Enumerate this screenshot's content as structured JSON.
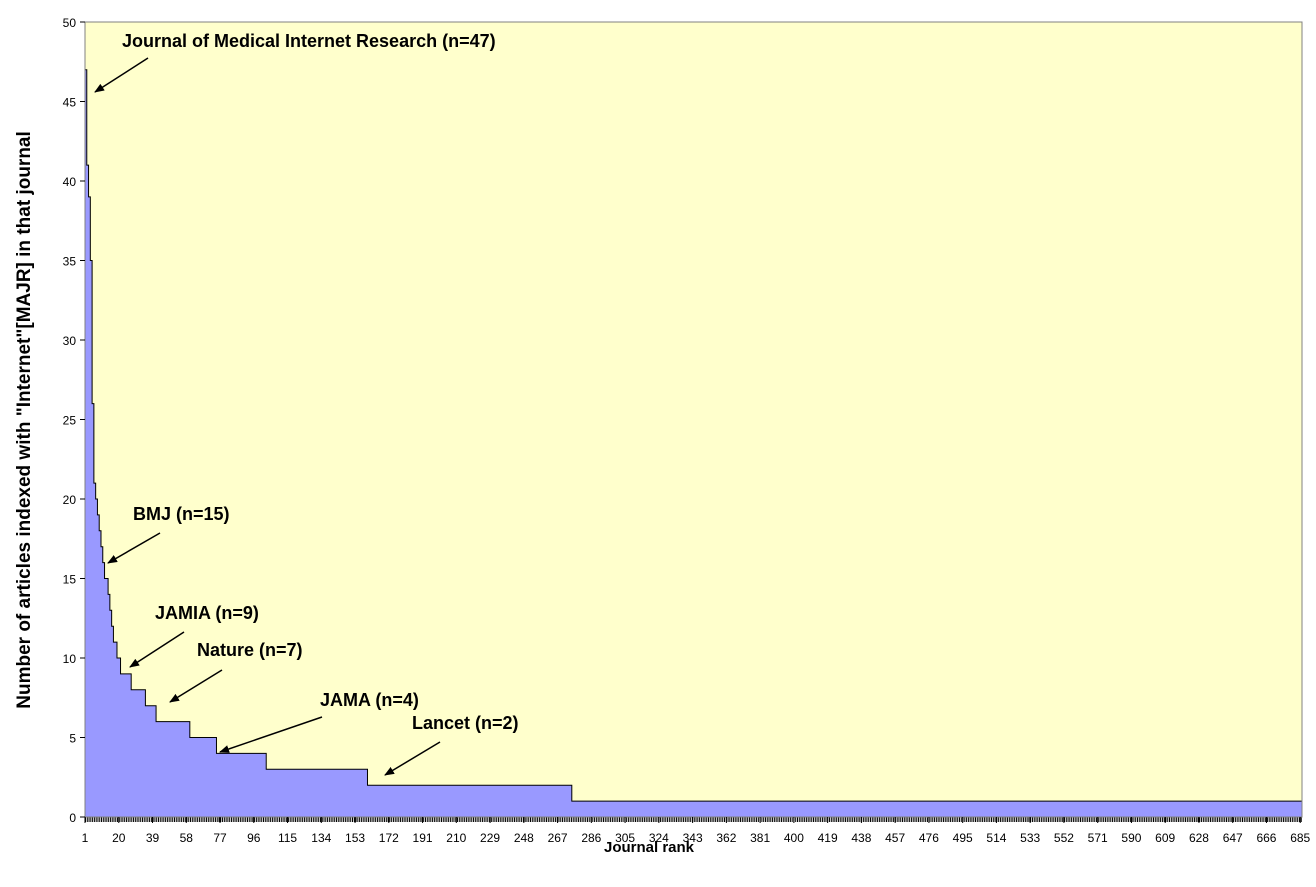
{
  "chart_data": {
    "type": "step-area",
    "y_label": "Number of articles indexed with \"Internet\"[MAJR] in that journal",
    "x_label": "Journal rank",
    "x": [
      1,
      2,
      3,
      4,
      5,
      6,
      7,
      8,
      9,
      10,
      11,
      12,
      14,
      15,
      16,
      17,
      19,
      21,
      27,
      35,
      41,
      60,
      75,
      103,
      160,
      275
    ],
    "values": [
      47,
      41,
      39,
      35,
      26,
      21,
      20,
      19,
      18,
      17,
      16,
      15,
      14,
      13,
      12,
      11,
      10,
      9,
      8,
      7,
      6,
      5,
      4,
      3,
      2,
      1
    ],
    "color": "#9999ff",
    "background": "#ffffcc",
    "xlim": [
      1,
      686
    ],
    "ylim": [
      0,
      50
    ],
    "xticks": [
      1,
      20,
      39,
      58,
      77,
      96,
      115,
      134,
      153,
      172,
      191,
      210,
      229,
      248,
      267,
      286,
      305,
      324,
      343,
      362,
      381,
      400,
      419,
      438,
      457,
      476,
      495,
      514,
      533,
      552,
      571,
      590,
      609,
      628,
      647,
      666,
      685
    ],
    "yticks": [
      0,
      5,
      10,
      15,
      20,
      25,
      30,
      35,
      40,
      45,
      50
    ],
    "annotations": [
      "Journal of Medical Internet Research (n=47)",
      "BMJ (n=15)",
      "JAMIA (n=9)",
      "Nature (n=7)",
      "JAMA (n=4)",
      "Lancet (n=2)"
    ]
  }
}
